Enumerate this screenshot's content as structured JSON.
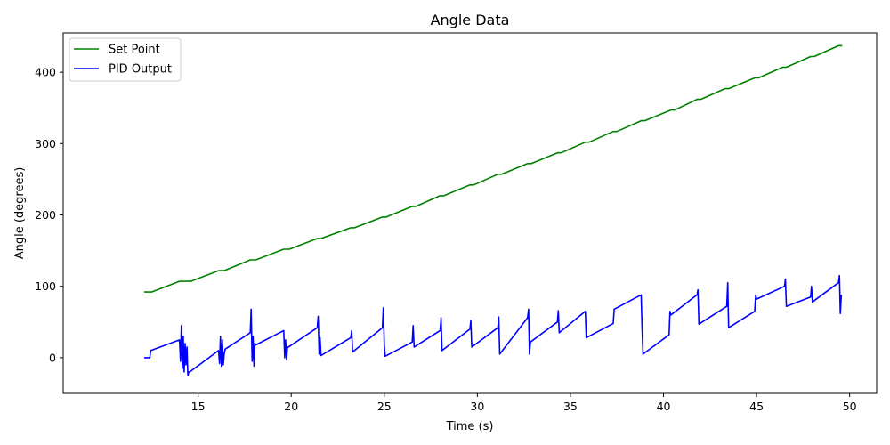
{
  "chart_data": {
    "type": "line",
    "title": "Angle Data",
    "xlabel": "Time (s)",
    "ylabel": "Angle (degrees)",
    "xlim": [
      7.75,
      51.45
    ],
    "ylim": [
      -50,
      455
    ],
    "xticks": [
      15,
      20,
      25,
      30,
      35,
      40,
      45,
      50
    ],
    "yticks": [
      0,
      100,
      200,
      300,
      400
    ],
    "grid": false,
    "legend_position": "top-left",
    "series": [
      {
        "name": "Set Point",
        "color": "#008000",
        "x": [
          12.1,
          12.5,
          14.0,
          14.6,
          16.1,
          16.4,
          17.8,
          18.1,
          19.6,
          19.9,
          21.4,
          21.6,
          23.2,
          23.4,
          24.9,
          25.1,
          26.5,
          26.7,
          28.0,
          28.2,
          29.6,
          29.8,
          31.1,
          31.3,
          32.7,
          32.9,
          34.3,
          34.5,
          35.8,
          36.0,
          37.3,
          37.5,
          38.8,
          39.0,
          40.4,
          40.6,
          41.8,
          42.0,
          43.3,
          43.5,
          44.9,
          45.1,
          46.4,
          46.6,
          47.9,
          48.1,
          49.4,
          49.6
        ],
        "y": [
          92,
          92,
          107,
          107,
          122,
          122,
          137,
          137,
          152,
          152,
          167,
          167,
          182,
          182,
          197,
          197,
          212,
          212,
          227,
          227,
          242,
          242,
          257,
          257,
          272,
          272,
          287,
          287,
          302,
          302,
          317,
          317,
          332,
          332,
          347,
          347,
          362,
          362,
          377,
          377,
          392,
          392,
          407,
          407,
          422,
          422,
          437,
          437
        ]
      },
      {
        "name": "PID Output",
        "color": "#0000ff",
        "x": [
          12.1,
          12.4,
          12.45,
          14.0,
          14.05,
          14.1,
          14.15,
          14.2,
          14.25,
          14.3,
          14.35,
          14.4,
          14.45,
          14.5,
          14.55,
          16.1,
          16.15,
          16.2,
          16.25,
          16.3,
          16.35,
          16.4,
          16.45,
          17.8,
          17.85,
          17.9,
          17.95,
          18.0,
          18.05,
          18.1,
          19.6,
          19.65,
          19.7,
          19.75,
          19.8,
          19.85,
          21.4,
          21.45,
          21.5,
          21.55,
          21.6,
          23.2,
          23.25,
          23.3,
          24.9,
          24.95,
          25.0,
          25.05,
          26.5,
          26.55,
          26.6,
          28.0,
          28.05,
          28.1,
          29.6,
          29.65,
          29.7,
          31.1,
          31.15,
          31.2,
          32.7,
          32.75,
          32.8,
          32.85,
          34.3,
          34.35,
          34.4,
          35.8,
          35.85,
          37.3,
          37.35,
          38.8,
          38.85,
          38.9,
          40.3,
          40.35,
          40.4,
          41.8,
          41.85,
          41.9,
          43.4,
          43.45,
          43.5,
          44.9,
          44.95,
          45.0,
          46.5,
          46.55,
          46.6,
          47.9,
          47.95,
          48.0,
          49.4,
          49.45,
          49.5,
          49.55
        ],
        "y": [
          0,
          0,
          10,
          25,
          -5,
          45,
          -15,
          30,
          -20,
          20,
          -10,
          15,
          -25,
          -20,
          -20,
          10,
          -8,
          30,
          -12,
          25,
          -10,
          5,
          12,
          35,
          68,
          -5,
          30,
          -12,
          20,
          18,
          38,
          0,
          25,
          -3,
          15,
          15,
          42,
          58,
          5,
          28,
          3,
          28,
          38,
          8,
          42,
          70,
          18,
          2,
          22,
          45,
          15,
          38,
          56,
          10,
          40,
          52,
          15,
          42,
          57,
          5,
          56,
          68,
          5,
          22,
          50,
          66,
          35,
          65,
          28,
          48,
          68,
          88,
          40,
          5,
          32,
          65,
          60,
          88,
          95,
          47,
          72,
          105,
          42,
          65,
          88,
          82,
          100,
          110,
          72,
          85,
          100,
          78,
          105,
          115,
          62,
          88
        ]
      }
    ]
  }
}
